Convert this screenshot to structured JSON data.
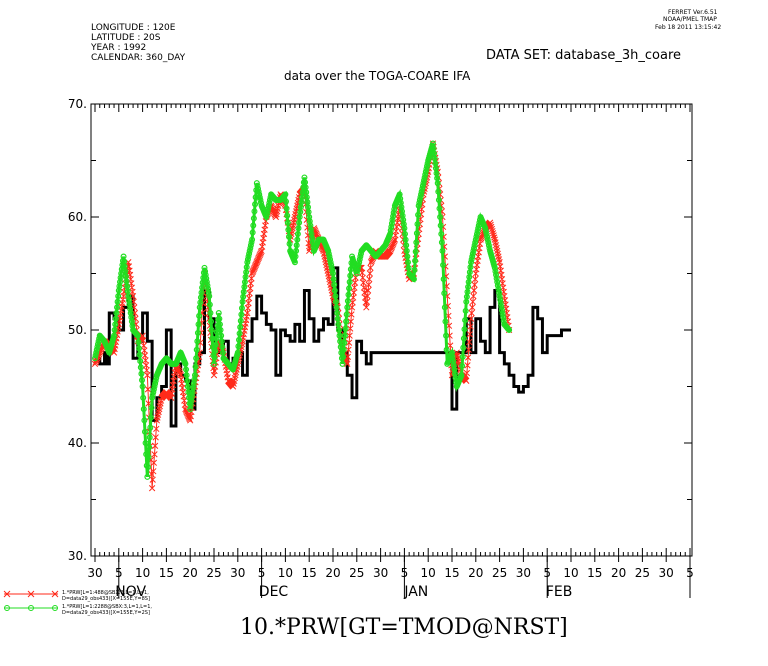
{
  "header": {
    "software_lines": [
      "FERRET  Ver.6.51",
      "NOAA/PMEL TMAP",
      "Feb 18 2011 13:15:42"
    ],
    "meta_lines": [
      "LONGITUDE : 120E",
      "LATITUDE : 20S",
      "YEAR : 1992",
      "CALENDAR: 360_DAY"
    ],
    "dataset": "DATA SET: database_3h_coare",
    "title": "data over the TOGA-COARE IFA"
  },
  "legend": {
    "red_lines": [
      "1.*PRW[L=1:488@SBX:3,L=1,L=1,",
      "D=data29_obs433)[X=155E,Y=8S]"
    ],
    "green_lines": [
      "1.*PRW[L=1:2288@SBX:3,L=1,L=1,",
      "D=data29_obs433)[X=155E,Y=2S]"
    ]
  },
  "footer": {
    "expression": "10.*PRW[GT=TMOD@NRST]"
  },
  "colors": {
    "black": "#000000",
    "red": "#ff2a1a",
    "green": "#22dd22"
  },
  "chart_data": {
    "type": "line",
    "ylim": [
      30,
      70
    ],
    "y_ticks": [
      "30.",
      "40.",
      "50.",
      "60.",
      "70."
    ],
    "x_tick_labels": [
      "30",
      "5",
      "10",
      "15",
      "20",
      "25",
      "30",
      "5",
      "10",
      "15",
      "20",
      "25",
      "30",
      "5",
      "10",
      "15",
      "20",
      "25",
      "30",
      "5",
      "10",
      "15",
      "20",
      "25",
      "30",
      "5"
    ],
    "x_month_labels": [
      "NOV",
      "DEC",
      "JAN",
      "FEB"
    ],
    "month_tick_index": [
      1,
      7,
      13,
      19,
      25
    ],
    "x_unit": "day (360_DAY calendar, 1992-10-30 to 1993-02-05)",
    "series": [
      {
        "name": "10.*PRW[GT=TMOD@NRST]",
        "style": "step",
        "points": [
          [
            0,
            47.5
          ],
          [
            1,
            47
          ],
          [
            2,
            48
          ],
          [
            2.5,
            47
          ],
          [
            3,
            51.5
          ],
          [
            4,
            51
          ],
          [
            5,
            50
          ],
          [
            6,
            52
          ],
          [
            7,
            53
          ],
          [
            8,
            47.5
          ],
          [
            9,
            49
          ],
          [
            10,
            51.5
          ],
          [
            11,
            49
          ],
          [
            12,
            42
          ],
          [
            13,
            44
          ],
          [
            14,
            45
          ],
          [
            15,
            50
          ],
          [
            16,
            41.5
          ],
          [
            17,
            47
          ],
          [
            18,
            46
          ],
          [
            19,
            45.5
          ],
          [
            20,
            43
          ],
          [
            21,
            47
          ],
          [
            22,
            48
          ],
          [
            23,
            53.5
          ],
          [
            24,
            51
          ],
          [
            25,
            49
          ],
          [
            26,
            48
          ],
          [
            27,
            49
          ],
          [
            28,
            47
          ],
          [
            29,
            47.5
          ],
          [
            30,
            48
          ],
          [
            31,
            46
          ],
          [
            32,
            49
          ],
          [
            33,
            51
          ],
          [
            34,
            53
          ],
          [
            35,
            51.5
          ],
          [
            36,
            50.5
          ],
          [
            37,
            50
          ],
          [
            38,
            46
          ],
          [
            39,
            50
          ],
          [
            40,
            49.5
          ],
          [
            41,
            49
          ],
          [
            42,
            50.5
          ],
          [
            43,
            49
          ],
          [
            44,
            53.5
          ],
          [
            45,
            51
          ],
          [
            46,
            49
          ],
          [
            47,
            50
          ],
          [
            48,
            51
          ],
          [
            49,
            50.5
          ],
          [
            50,
            55.5
          ],
          [
            51,
            50
          ],
          [
            52,
            48
          ],
          [
            53,
            46
          ],
          [
            54,
            44
          ],
          [
            55,
            49
          ],
          [
            56,
            48
          ],
          [
            57,
            47
          ],
          [
            58,
            48
          ],
          [
            60,
            48
          ],
          [
            63,
            48
          ],
          [
            66,
            48
          ],
          [
            69,
            48
          ],
          [
            72,
            48
          ],
          [
            74,
            48
          ],
          [
            75,
            43
          ],
          [
            76,
            48
          ],
          [
            78,
            51
          ],
          [
            79,
            48
          ],
          [
            80,
            51
          ],
          [
            81,
            49
          ],
          [
            82,
            48
          ],
          [
            83,
            52
          ],
          [
            84,
            53.5
          ],
          [
            85,
            48
          ],
          [
            86,
            47
          ],
          [
            87,
            46
          ],
          [
            88,
            45
          ],
          [
            89,
            44.5
          ],
          [
            90,
            45
          ],
          [
            91,
            46
          ],
          [
            92,
            52
          ],
          [
            93,
            51
          ],
          [
            94,
            48
          ],
          [
            95,
            49.5
          ],
          [
            96,
            49.5
          ],
          [
            97,
            49.5
          ],
          [
            98,
            50
          ]
        ]
      },
      {
        "name": "1.*PRW[L=1:488@SBX:3,L=1,L=1,",
        "style": "line-x",
        "points": [
          [
            0,
            47
          ],
          [
            1,
            48
          ],
          [
            2,
            49
          ],
          [
            3,
            48.5
          ],
          [
            4,
            48
          ],
          [
            5,
            50.5
          ],
          [
            6,
            53
          ],
          [
            7,
            56
          ],
          [
            8,
            53
          ],
          [
            9,
            49
          ],
          [
            10,
            49.5
          ],
          [
            11,
            46
          ],
          [
            12,
            36
          ],
          [
            13,
            42
          ],
          [
            14,
            44
          ],
          [
            15,
            44.5
          ],
          [
            16,
            44
          ],
          [
            17,
            47
          ],
          [
            18,
            46
          ],
          [
            19,
            43
          ],
          [
            20,
            42
          ],
          [
            21,
            45
          ],
          [
            22,
            48
          ],
          [
            23,
            55
          ],
          [
            24,
            51
          ],
          [
            25,
            46
          ],
          [
            26,
            49
          ],
          [
            27,
            48
          ],
          [
            28,
            45.5
          ],
          [
            29,
            45
          ],
          [
            30,
            47
          ],
          [
            31,
            49
          ],
          [
            32,
            51.5
          ],
          [
            33,
            55
          ],
          [
            34,
            56
          ],
          [
            35,
            57
          ],
          [
            36,
            60
          ],
          [
            37,
            61
          ],
          [
            38,
            60
          ],
          [
            39,
            62
          ],
          [
            40,
            61
          ],
          [
            41,
            58
          ],
          [
            42,
            60
          ],
          [
            43,
            62
          ],
          [
            44,
            62.5
          ],
          [
            45,
            57
          ],
          [
            46,
            59
          ],
          [
            47,
            58
          ],
          [
            48,
            57
          ],
          [
            49,
            55
          ],
          [
            50,
            53
          ],
          [
            51,
            52
          ],
          [
            52,
            48
          ],
          [
            53,
            47
          ],
          [
            54,
            52
          ],
          [
            55,
            55.5
          ],
          [
            56,
            55.5
          ],
          [
            57,
            52
          ],
          [
            58,
            56
          ],
          [
            59,
            57
          ],
          [
            60,
            56.5
          ],
          [
            61,
            56.5
          ],
          [
            62,
            57
          ],
          [
            63,
            58
          ],
          [
            64,
            61
          ],
          [
            65,
            57
          ],
          [
            66,
            54.5
          ],
          [
            67,
            55
          ],
          [
            68,
            58.5
          ],
          [
            69,
            62
          ],
          [
            70,
            64
          ],
          [
            71,
            66.5
          ],
          [
            72,
            64
          ],
          [
            73,
            60
          ],
          [
            74,
            53
          ],
          [
            75,
            46
          ],
          [
            76,
            48
          ],
          [
            77,
            46
          ],
          [
            78,
            45.5
          ],
          [
            79,
            51
          ],
          [
            80,
            55
          ],
          [
            81,
            58
          ],
          [
            82,
            59
          ],
          [
            83,
            59.5
          ],
          [
            84,
            58
          ],
          [
            85,
            56
          ],
          [
            86,
            53
          ],
          [
            87,
            50
          ]
        ]
      },
      {
        "name": "1.*PRW[L=1:2288@SBX:3,L=1,L=1,",
        "style": "line-o",
        "points": [
          [
            0,
            47.5
          ],
          [
            1,
            49.5
          ],
          [
            2,
            49
          ],
          [
            3,
            48
          ],
          [
            4,
            49.5
          ],
          [
            5,
            53.5
          ],
          [
            6,
            56.5
          ],
          [
            7,
            53
          ],
          [
            8,
            50
          ],
          [
            9,
            49.5
          ],
          [
            10,
            45
          ],
          [
            11,
            37
          ],
          [
            12,
            44
          ],
          [
            13,
            46
          ],
          [
            14,
            47
          ],
          [
            15,
            47.5
          ],
          [
            16,
            47
          ],
          [
            17,
            47
          ],
          [
            18,
            48
          ],
          [
            19,
            47
          ],
          [
            20,
            43
          ],
          [
            21,
            46
          ],
          [
            22,
            52
          ],
          [
            23,
            55.5
          ],
          [
            24,
            53
          ],
          [
            25,
            47
          ],
          [
            26,
            51.5
          ],
          [
            27,
            47.5
          ],
          [
            28,
            47
          ],
          [
            29,
            46.5
          ],
          [
            30,
            48
          ],
          [
            31,
            52.5
          ],
          [
            32,
            56
          ],
          [
            33,
            58
          ],
          [
            34,
            63
          ],
          [
            35,
            61
          ],
          [
            36,
            60
          ],
          [
            37,
            62
          ],
          [
            38,
            61.5
          ],
          [
            39,
            61.5
          ],
          [
            40,
            62
          ],
          [
            41,
            57
          ],
          [
            42,
            56
          ],
          [
            43,
            60
          ],
          [
            44,
            63.5
          ],
          [
            45,
            60
          ],
          [
            46,
            57
          ],
          [
            47,
            58
          ],
          [
            48,
            58
          ],
          [
            49,
            57
          ],
          [
            50,
            55
          ],
          [
            51,
            51
          ],
          [
            52,
            47
          ],
          [
            53,
            52
          ],
          [
            54,
            56.5
          ],
          [
            55,
            55
          ],
          [
            56,
            57
          ],
          [
            57,
            57.5
          ],
          [
            58,
            57
          ],
          [
            59,
            56.5
          ],
          [
            60,
            57
          ],
          [
            61,
            57.5
          ],
          [
            62,
            58.5
          ],
          [
            63,
            61
          ],
          [
            64,
            62
          ],
          [
            65,
            59
          ],
          [
            66,
            55
          ],
          [
            67,
            54.5
          ],
          [
            68,
            61
          ],
          [
            69,
            63
          ],
          [
            70,
            65
          ],
          [
            71,
            66.5
          ],
          [
            72,
            63
          ],
          [
            73,
            57
          ],
          [
            74,
            47
          ],
          [
            75,
            48
          ],
          [
            76,
            45
          ],
          [
            77,
            46
          ],
          [
            78,
            52.5
          ],
          [
            79,
            56
          ],
          [
            80,
            58
          ],
          [
            81,
            60
          ],
          [
            82,
            59
          ],
          [
            83,
            57
          ],
          [
            84,
            55.5
          ],
          [
            85,
            53
          ],
          [
            86,
            50.5
          ],
          [
            87,
            50
          ]
        ]
      }
    ]
  }
}
